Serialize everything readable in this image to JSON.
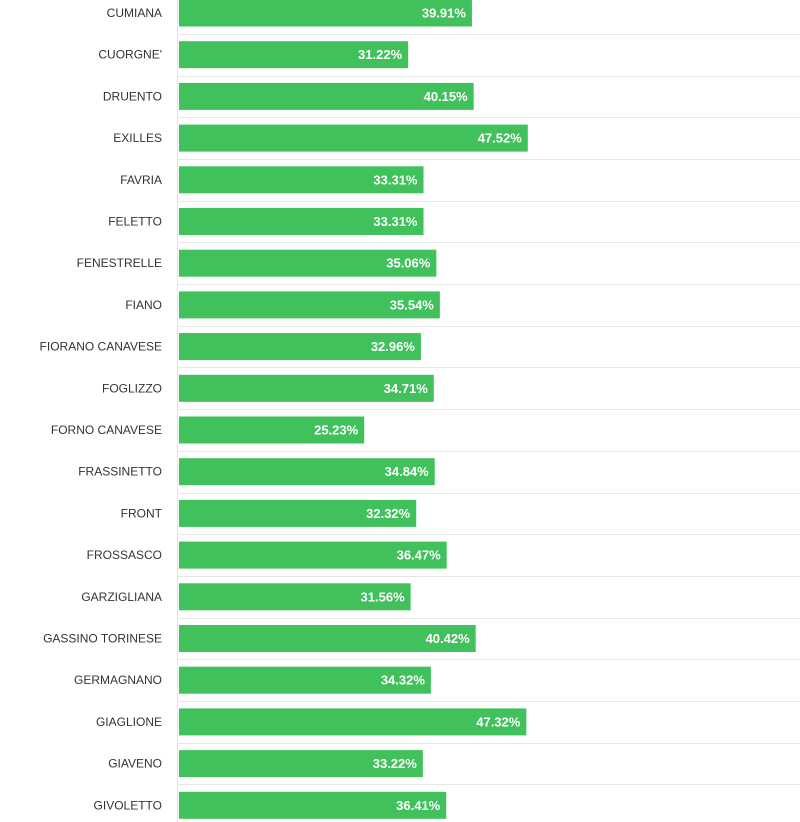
{
  "chart_data": {
    "type": "bar",
    "orientation": "horizontal",
    "title": "",
    "xlabel": "",
    "ylabel": "",
    "xlim": [
      0,
      100
    ],
    "bar_color": "#40c15c",
    "label_color": "#ffffff",
    "grid": false,
    "categories": [
      "CUMIANA",
      "CUORGNE'",
      "DRUENTO",
      "EXILLES",
      "FAVRIA",
      "FELETTO",
      "FENESTRELLE",
      "FIANO",
      "FIORANO CANAVESE",
      "FOGLIZZO",
      "FORNO CANAVESE",
      "FRASSINETTO",
      "FRONT",
      "FROSSASCO",
      "GARZIGLIANA",
      "GASSINO TORINESE",
      "GERMAGNANO",
      "GIAGLIONE",
      "GIAVENO",
      "GIVOLETTO"
    ],
    "values": [
      39.91,
      31.22,
      40.15,
      47.52,
      33.31,
      33.31,
      35.06,
      35.54,
      32.96,
      34.71,
      25.23,
      34.84,
      32.32,
      36.47,
      31.56,
      40.42,
      34.32,
      47.32,
      33.22,
      36.41
    ],
    "value_labels": [
      "39.91%",
      "31.22%",
      "40.15%",
      "47.52%",
      "33.31%",
      "33.31%",
      "35.06%",
      "35.54%",
      "32.96%",
      "34.71%",
      "25.23%",
      "34.84%",
      "32.32%",
      "36.47%",
      "31.56%",
      "40.42%",
      "34.32%",
      "47.32%",
      "33.22%",
      "36.41%"
    ]
  }
}
